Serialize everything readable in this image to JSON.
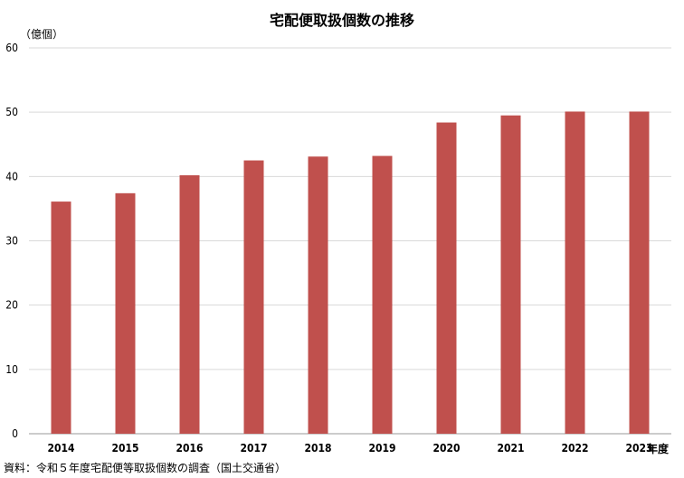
{
  "chart_data": {
    "type": "bar",
    "title": "宅配便取扱個数の推移",
    "ylabel": "（億個）",
    "xlabel": "年度",
    "categories": [
      "2014",
      "2015",
      "2016",
      "2017",
      "2018",
      "2019",
      "2020",
      "2021",
      "2022",
      "2023"
    ],
    "series": [
      {
        "values": [
          36.1,
          37.4,
          40.2,
          42.5,
          43.1,
          43.2,
          48.4,
          49.5,
          50.1,
          50.1
        ]
      }
    ],
    "ylim": [
      0,
      60
    ],
    "yticks": [
      "0",
      "10",
      "20",
      "30",
      "40",
      "50",
      "60"
    ],
    "grid": true,
    "bar_color": "#c0504d",
    "source": "資料：令和５年度宅配便等取扱個数の調査（国土交通省）"
  }
}
